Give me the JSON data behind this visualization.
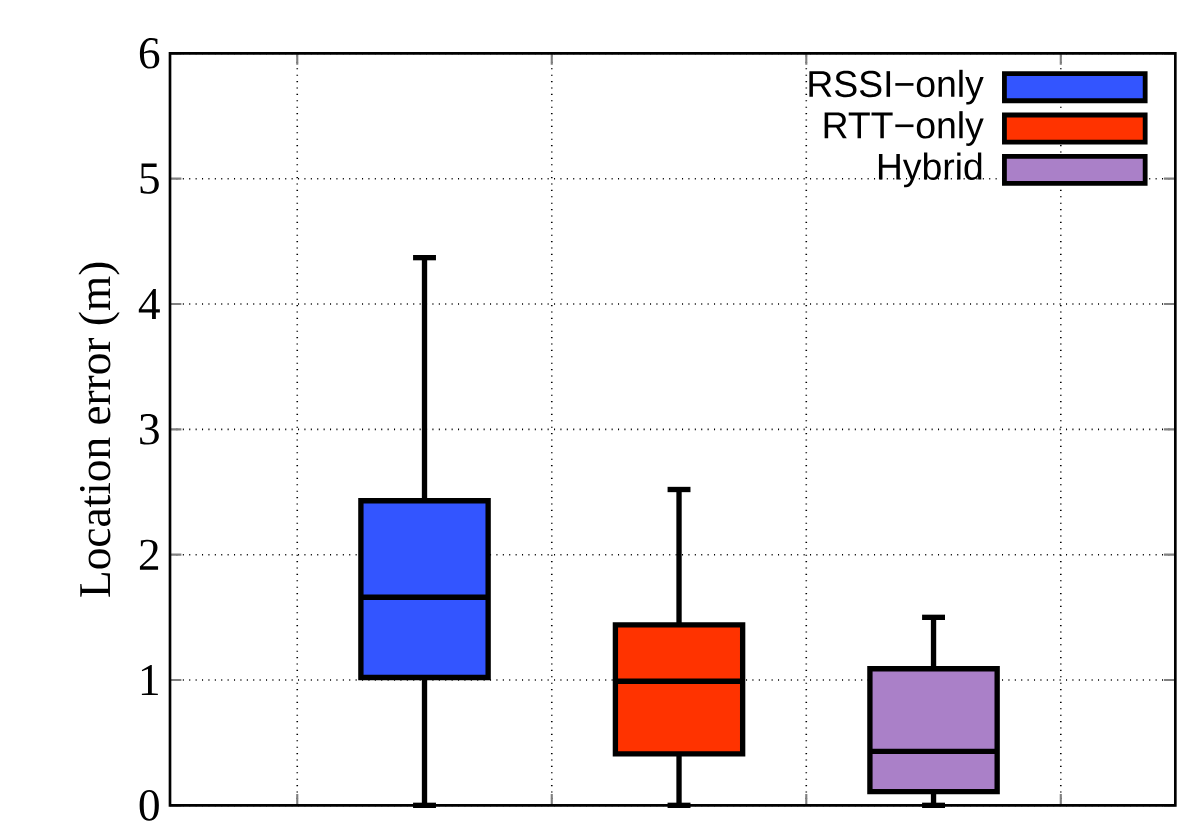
{
  "chart_data": {
    "type": "box",
    "ylabel": "Location error (m)",
    "categories": [
      null,
      null,
      null
    ],
    "ylim": [
      0,
      6
    ],
    "yticks": [
      0,
      1,
      2,
      3,
      4,
      5,
      6
    ],
    "grid": true,
    "legend": "top right",
    "tick_labels": "y",
    "series": [
      {
        "name": "RSSI−only",
        "color": "#3355ff",
        "boxes": [
          {
            "low": 0,
            "q1": 1.02,
            "median": 1.66,
            "q3": 2.43,
            "high": 4.37
          },
          null,
          null
        ]
      },
      {
        "name": "RTT−only",
        "color": "#ff3300",
        "boxes": [
          null,
          {
            "low": 0,
            "q1": 0.41,
            "median": 0.99,
            "q3": 1.44,
            "high": 2.52
          },
          null
        ]
      },
      {
        "name": "Hybrid",
        "color": "#aa80c8",
        "boxes": [
          null,
          null,
          {
            "low": 0,
            "q1": 0.11,
            "median": 0.43,
            "q3": 1.09,
            "high": 1.5
          }
        ]
      }
    ]
  }
}
